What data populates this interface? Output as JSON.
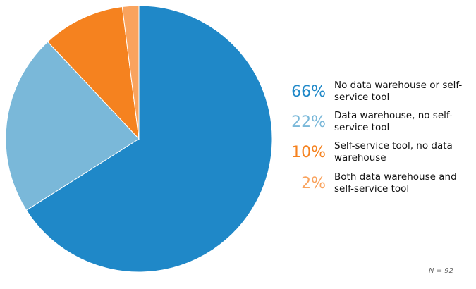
{
  "chart_data": {
    "type": "pie",
    "categories": [
      "No data warehouse or self-service tool",
      "Data warehouse, no self-service tool",
      "Self-service tool, no data warehouse",
      "Both data warehouse and self-service tool"
    ],
    "values": [
      66,
      22,
      10,
      2
    ],
    "value_labels": [
      "66%",
      "22%",
      "10%",
      "2%"
    ],
    "colors": [
      "#1f88c8",
      "#7ab8d9",
      "#f5821f",
      "#f9a35e"
    ],
    "note": "N = 92"
  }
}
